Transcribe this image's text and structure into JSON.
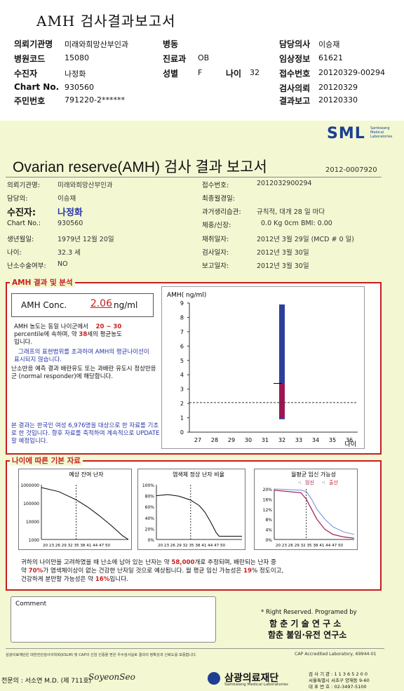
{
  "header": {
    "title": "AMH 검사결과보고서",
    "rows": [
      {
        "items": [
          {
            "k": "의뢰기관명",
            "v": "미래와희망산부인과"
          },
          {
            "k": "병동",
            "v": ""
          },
          {
            "k": "담당의사",
            "v": "이승재"
          }
        ]
      },
      {
        "items": [
          {
            "k": "병원코드",
            "v": "15080"
          },
          {
            "k": "진료과",
            "v": "OB"
          },
          {
            "k": "임상정보",
            "v": "61621"
          }
        ]
      },
      {
        "items": [
          {
            "k": "수진자",
            "v": "나정화"
          },
          {
            "k": "성별",
            "v": "F"
          },
          {
            "k": "나이",
            "v": "32"
          },
          {
            "k": "접수번호",
            "v": "20120329-00294"
          }
        ]
      },
      {
        "items": [
          {
            "k": "Chart No.",
            "v": "930560"
          },
          {
            "k": "검사의뢰",
            "v": "20120329"
          }
        ]
      },
      {
        "items": [
          {
            "k": "주민번호",
            "v": "791220-2******"
          },
          {
            "k": "결과보고",
            "v": "20120330"
          }
        ]
      }
    ]
  },
  "report": {
    "logo": "SML",
    "logo_sub": [
      "Samkwang",
      "Medical",
      "Laboratories"
    ],
    "title": "Ovarian reserve(AMH) 검사 결과 보고서",
    "doc_no": "2012-0007920",
    "left": [
      {
        "k": "의뢰기관명:",
        "v": "미래와희망산부인과"
      },
      {
        "k": "담당의:",
        "v": "이승재"
      },
      {
        "k": "수진자:",
        "v": "나정화"
      },
      {
        "k": "Chart No.:",
        "v": "930560"
      },
      {
        "k": "생년월일:",
        "v": "1979년 12월 20일"
      },
      {
        "k": "나이:",
        "v": "32.3 세"
      },
      {
        "k": "난소수술여부:",
        "v": "NO"
      }
    ],
    "right": [
      {
        "k": "접수번호:",
        "v": "2012032900294"
      },
      {
        "k": "최종월경일:",
        "v": ""
      },
      {
        "k": "과거생리습관:",
        "v": "규칙적, 대개   28 일 마다"
      },
      {
        "k": "체중/신장:",
        "v": "0.0  Kg       0cm    BMI:    0.00"
      },
      {
        "k": "채취일자:",
        "v": "2012년 3월 29일    (MCD #  0 일)"
      },
      {
        "k": "검사일자:",
        "v": "2012년 3월 30일"
      },
      {
        "k": "보고일자:",
        "v": "2012년 3월 30일"
      }
    ]
  },
  "amh": {
    "section_label": "AMH 결과 및 분석",
    "conc_label": "AMH Conc.",
    "conc_value": "2.06",
    "conc_unit": "ng/ml",
    "p1a": "AMH 농도는 동일 나이군에서",
    "p1b": "20 ~ 30",
    "p1c": "percentile에 속하며, 약",
    "p1d": "38",
    "p1e": "세의 평균농도",
    "p1f": "입니다.",
    "p2": "그래프의 표현범위를 초과하여 AMH의 평균나이선이 표시되지 않습니다.",
    "p3": "난소반응 예측 결과 배란유도 또는 과배란 유도시 정상반응군 (normal responder)에 해당합니다.",
    "p4": "본 결과는 한국인 여성 6,976명을 대상으로 한 자료를 기초로 한 것입니다. 향후 자료를 축적하여 계속적으로 UPDATE할 예정입니다."
  },
  "chart_data": [
    {
      "type": "bar",
      "ylabel": "AMH( ng/ml)",
      "xlabel": "나이",
      "ylim": [
        0,
        9
      ],
      "yticks": [
        0,
        1,
        2,
        3,
        4,
        5,
        6,
        7,
        8,
        9
      ],
      "x": [
        27,
        28,
        29,
        30,
        31,
        32,
        33,
        34,
        35,
        36
      ],
      "range_at_age": 32,
      "range_low": 0.9,
      "range_high": 8.9,
      "iqr": [
        1.0,
        3.4
      ],
      "patient_value": 2.06,
      "colors": {
        "range": "#2c3f9c",
        "iqr": "#9c1652"
      }
    },
    {
      "type": "line",
      "title": "예상 잔여 난자",
      "yticks": [
        "1000000",
        "100000",
        "10000",
        "1000"
      ],
      "x": [
        20,
        23,
        26,
        29,
        32,
        35,
        38,
        41,
        44,
        47,
        50
      ],
      "marker_age": 32,
      "log_y": true
    },
    {
      "type": "line",
      "title": "염색체 정상 난자 비율",
      "yticks": [
        "100%",
        "80%",
        "60%",
        "40%",
        "20%",
        "0%"
      ],
      "x": [
        20,
        23,
        26,
        29,
        32,
        35,
        38,
        41,
        44,
        47,
        50
      ],
      "marker_age": 32
    },
    {
      "type": "line",
      "title": "월평균 임신 가능성",
      "legend": [
        "임신",
        "출산"
      ],
      "yticks": [
        "20%",
        "16%",
        "12%",
        "8%",
        "4%",
        "0%"
      ],
      "x": [
        20,
        23,
        26,
        29,
        32,
        35,
        38,
        41,
        44,
        47,
        50
      ],
      "marker_age": 32
    }
  ],
  "basic": {
    "section_label": "나이에 따른 기본 자료",
    "s1a": "귀하의 나이만을 고려하였을 때 난소에 남아 있는 난자는 약",
    "s1b": "58,000",
    "s1c": "개로 추정되며, 배란되는 난자 중",
    "s2a": "약",
    "s2b": "70%",
    "s2c": "가 염색체이상이 없는 건강한 난자일 것으로 예상됩니다. 월 평균 임신 가능성은",
    "s2d": "19",
    "s2e": "% 정도이고,",
    "s3a": "건강하게 분만할 가능성은 약",
    "s3b": "16%",
    "s3c": "입니다."
  },
  "footer": {
    "comment_label": "Comment",
    "rights": "* Right Reserved. Programed by",
    "inst1": "함 춘  기 술  연 구 소",
    "inst2": "함춘 불임·유전 연구소",
    "cert": "삼광의료재단은 대한진단검사의학회(KSLM) 및 CAP의 신임 인증을 받은 우수검사실로 결과의 정확성과 신뢰도를 보증합니다.",
    "cap": "CAP  Accredited  Laboratory,  69944-01",
    "doctor": "전문의 : 서소연 M.D. (제 711호)",
    "signature": "SoyeonSeo",
    "foundation": "삼광의료재단",
    "foundation_en": "Samkwang Medical Laboratories",
    "addr1": "검 사 기 관 : 1 1 3 6 5 2 0 0",
    "addr2": "서울특별시 서초구 양재동 9-60",
    "addr3": "대 표 번 호 : 02-3497-5100"
  }
}
